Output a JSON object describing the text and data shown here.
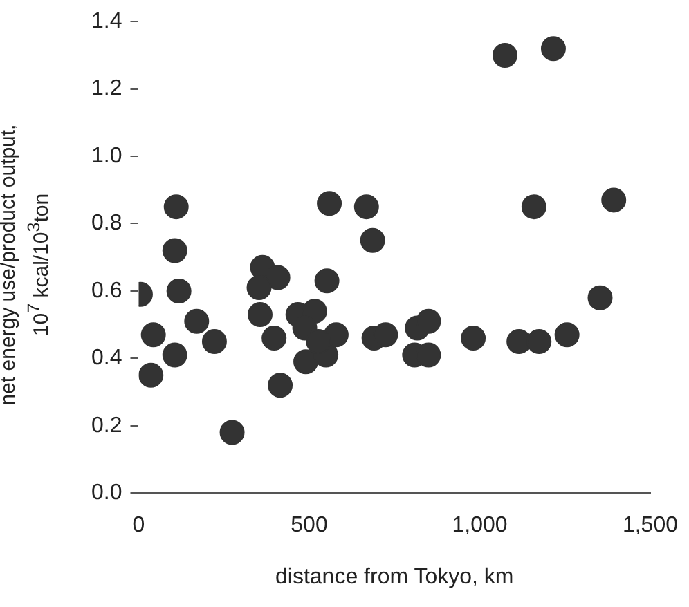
{
  "chart_data": {
    "type": "scatter",
    "xlabel": "distance from Tokyo, km",
    "ylabel": "net energy use/product output,\n10$^{7}$ kcal/10$^{3}$ton",
    "series": [
      {
        "color": "#333333",
        "x": [
          5,
          43,
          36,
          106,
          110,
          106,
          118,
          170,
          222,
          274,
          363,
          408,
          353,
          356,
          397,
          415,
          559,
          668,
          686,
          552,
          467,
          516,
          487,
          579,
          490,
          549,
          527,
          690,
          724,
          817,
          850,
          809,
          850,
          1074,
          1216,
          1159,
          1393,
          1353,
          981,
          1115,
          1174,
          1256
        ],
        "values": [
          0.59,
          0.47,
          0.35,
          0.72,
          0.85,
          0.41,
          0.6,
          0.51,
          0.45,
          0.18,
          0.67,
          0.64,
          0.61,
          0.53,
          0.46,
          0.32,
          0.86,
          0.85,
          0.75,
          0.63,
          0.53,
          0.54,
          0.49,
          0.47,
          0.39,
          0.41,
          0.45,
          0.46,
          0.47,
          0.49,
          0.51,
          0.41,
          0.41,
          1.3,
          1.32,
          0.85,
          0.87,
          0.58,
          0.46,
          0.45,
          0.45,
          0.47
        ]
      }
    ],
    "xlim": [
      0,
      1500
    ],
    "xticks": [
      0,
      {
        "value": 500,
        "label": "500"
      },
      {
        "value": 1000,
        "label": "1,000"
      },
      {
        "value": 1500,
        "label": "1,500"
      }
    ],
    "ylim": [
      0,
      1.4
    ],
    "yticks": [
      {
        "value": 0,
        "label": "0.0"
      },
      0.2,
      0.4,
      0.6,
      0.8,
      {
        "value": 1,
        "label": "1.0"
      },
      1.2,
      1.4
    ],
    "grid": false,
    "legend": false,
    "marker": "circle"
  }
}
